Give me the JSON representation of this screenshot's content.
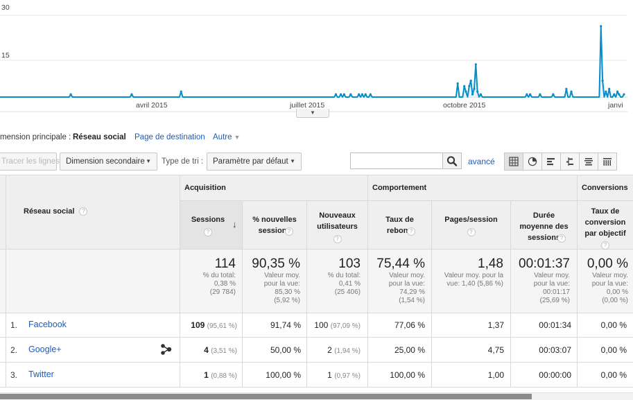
{
  "chart_data": {
    "type": "area",
    "y_ticks": [
      "30",
      "15"
    ],
    "x_ticks": [
      "avril 2015",
      "juillet 2015",
      "octobre 2015",
      "janvi"
    ],
    "series": [
      {
        "values": [
          0,
          0,
          0,
          0,
          0,
          0,
          0,
          0,
          0,
          0,
          0,
          0,
          0,
          0,
          0,
          0,
          0,
          0,
          0,
          0,
          0,
          0,
          0,
          0,
          0,
          0,
          0,
          0,
          0,
          0,
          0,
          0,
          0,
          0,
          0,
          0,
          0,
          0,
          0,
          0,
          0,
          0,
          0,
          1,
          0,
          0,
          0,
          0,
          0,
          0,
          0,
          0,
          0,
          0,
          0,
          0,
          0,
          0,
          0,
          0,
          0,
          0,
          0,
          0,
          0,
          0,
          0,
          0,
          0,
          0,
          0,
          0,
          0,
          0,
          0,
          0,
          0,
          0,
          0,
          0,
          1,
          0,
          0,
          0,
          0,
          0,
          0,
          0,
          0,
          0,
          0,
          0,
          0,
          0,
          0,
          0,
          0,
          0,
          0,
          0,
          0,
          0,
          0,
          0,
          0,
          0,
          0,
          0,
          0,
          0,
          2,
          0,
          0,
          0,
          0,
          0,
          0,
          0,
          0,
          0,
          0,
          0,
          0,
          0,
          0,
          0,
          0,
          0,
          0,
          0,
          0,
          0,
          0,
          0,
          0,
          0,
          0,
          0,
          0,
          0,
          0,
          0,
          0,
          0,
          0,
          0,
          0,
          0,
          0,
          0,
          0,
          0,
          0,
          0,
          0,
          0,
          0,
          0,
          0,
          0,
          0,
          0,
          0,
          0,
          0,
          0,
          0,
          0,
          0,
          0,
          0,
          0,
          0,
          0,
          0,
          0,
          0,
          0,
          0,
          0,
          0,
          0,
          0,
          0,
          0,
          0,
          0,
          0,
          0,
          0,
          0,
          0,
          0,
          0,
          0,
          0,
          0,
          0,
          0,
          0,
          0,
          0,
          0,
          0,
          1,
          0,
          0,
          1,
          0,
          1,
          0,
          0,
          0,
          1,
          0,
          0,
          0,
          0,
          1,
          0,
          1,
          0,
          1,
          0,
          0,
          1,
          0,
          0,
          0,
          0,
          0,
          0,
          0,
          0,
          0,
          0,
          0,
          0,
          0,
          0,
          0,
          0,
          0,
          0,
          0,
          0,
          0,
          0,
          0,
          0,
          0,
          0,
          0,
          0,
          0,
          0,
          0,
          0,
          0,
          0,
          0,
          0,
          0,
          0,
          0,
          0,
          0,
          0,
          0,
          0,
          0,
          0,
          0,
          0,
          0,
          0,
          0,
          0,
          5,
          0,
          0,
          0,
          4,
          2,
          0,
          4,
          6,
          1,
          3,
          12,
          2,
          0,
          1,
          0,
          0,
          0,
          0,
          0,
          0,
          0,
          0,
          0,
          0,
          0,
          0,
          0,
          0,
          0,
          0,
          0,
          0,
          0,
          0,
          0,
          0,
          0,
          0,
          0,
          0,
          0,
          1,
          0,
          1,
          0,
          0,
          0,
          0,
          0,
          1,
          0,
          0,
          0,
          0,
          0,
          0,
          0,
          1,
          0,
          0,
          0,
          0,
          0,
          0,
          0,
          3,
          0,
          0,
          2,
          0,
          0,
          0,
          0,
          0,
          0,
          0,
          0,
          0,
          0,
          0,
          0,
          0,
          0,
          0,
          0,
          0,
          26,
          6,
          0,
          2,
          0,
          3,
          0,
          0,
          1,
          0,
          2,
          1,
          0,
          0,
          1
        ]
      }
    ],
    "ylim": [
      0,
      30
    ],
    "grid": true,
    "line_color": "#058dc7",
    "fill_color": "#e6f2fa"
  },
  "dimension_bar": {
    "label": "mension principale :",
    "selected": "Réseau social",
    "link": "Page de destination",
    "other": "Autre"
  },
  "toolbar": {
    "plot_rows": "Tracer les lignes",
    "secondary_dimension": "Dimension secondaire",
    "sort_label": "Type de tri :",
    "sort_value": "Paramètre par défaut",
    "search_value": "",
    "advanced": "avancé",
    "view_icons": [
      "grid-view-icon",
      "pie-view-icon",
      "performance-view-icon",
      "comparison-view-icon",
      "term-cloud-view-icon",
      "pivot-view-icon"
    ]
  },
  "table": {
    "dimension_header": "Réseau social",
    "groups": {
      "acquisition": "Acquisition",
      "behavior": "Comportement",
      "conversions": "Conversions"
    },
    "columns": {
      "sessions": "Sessions",
      "new_sessions_pct": "% nouvelles sessions",
      "new_users": "Nouveaux utilisateurs",
      "bounce_rate": "Taux de rebond",
      "pages_session": "Pages/session",
      "avg_duration": "Durée moyenne des sessions",
      "conversion_rate": "Taux de conversion par objectif"
    },
    "totals": {
      "sessions": "114",
      "sessions_sub": "% du total:\n0,38 %\n(29 784)",
      "new_sessions_pct": "90,35 %",
      "new_sessions_pct_sub": "Valeur moy.\npour la vue:\n85,30 %\n(5,92 %)",
      "new_users": "103",
      "new_users_sub": "% du total:\n0,41 %\n(25 406)",
      "bounce_rate": "75,44 %",
      "bounce_rate_sub": "Valeur moy.\npour la vue:\n74,29 %\n(1,54 %)",
      "pages_session": "1,48",
      "pages_session_sub": "Valeur moy. pour la\nvue: 1,40 (5,86 %)",
      "avg_duration": "00:01:37",
      "avg_duration_sub": "Valeur moy.\npour la vue:\n00:01:17\n(25,69 %)",
      "conversion_rate": "0,00 %",
      "conversion_rate_sub": "Valeur moy.\npour la vue:\n0,00 %\n(0,00 %)"
    },
    "rows": [
      {
        "rank": "1.",
        "name": "Facebook",
        "sessions": "109",
        "sessions_pct": "(95,61 %)",
        "new_sessions_pct": "91,74 %",
        "new_users": "100",
        "new_users_pct": "(97,09 %)",
        "bounce_rate": "77,06 %",
        "pages_session": "1,37",
        "avg_duration": "00:01:34",
        "conversion_rate": "0,00 %"
      },
      {
        "rank": "2.",
        "name": "Google+",
        "sessions": "4",
        "sessions_pct": "(3,51 %)",
        "new_sessions_pct": "50,00 %",
        "new_users": "2",
        "new_users_pct": "(1,94 %)",
        "bounce_rate": "25,00 %",
        "pages_session": "4,75",
        "avg_duration": "00:03:07",
        "conversion_rate": "0,00 %"
      },
      {
        "rank": "3.",
        "name": "Twitter",
        "sessions": "1",
        "sessions_pct": "(0,88 %)",
        "new_sessions_pct": "100,00 %",
        "new_users": "1",
        "new_users_pct": "(0,97 %)",
        "bounce_rate": "100,00 %",
        "pages_session": "1,00",
        "avg_duration": "00:00:00",
        "conversion_rate": "0,00 %"
      }
    ]
  }
}
